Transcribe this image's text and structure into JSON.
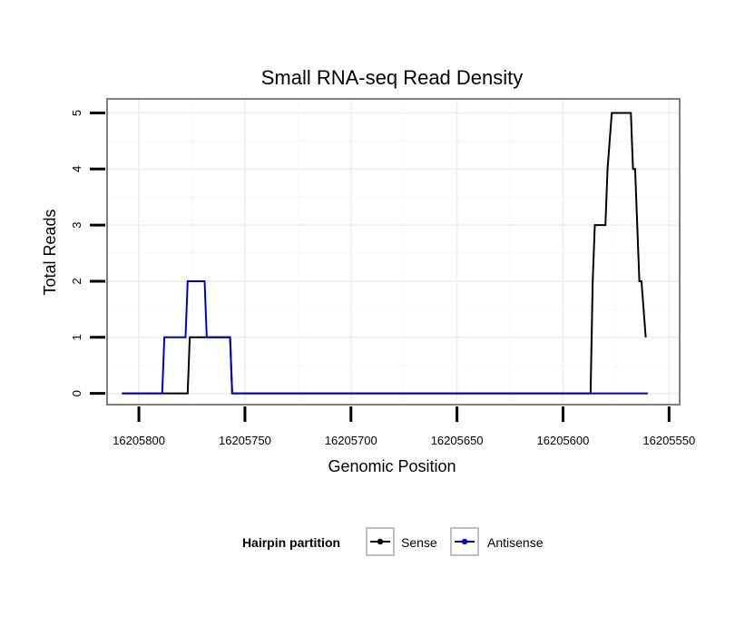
{
  "chart_data": {
    "type": "line",
    "title": "Small RNA-seq Read Density",
    "xlabel": "Genomic Position",
    "ylabel": "Total Reads",
    "xlim": [
      16205815,
      16205545
    ],
    "x_reversed": true,
    "ylim": [
      -0.2,
      5.25
    ],
    "x_ticks": [
      16205800,
      16205750,
      16205700,
      16205650,
      16205600,
      16205550
    ],
    "x_tick_labels": [
      "16205800",
      "16205750",
      "16205700",
      "16205650",
      "16205600",
      "16205550"
    ],
    "y_ticks": [
      0,
      1,
      2,
      3,
      4,
      5
    ],
    "y_tick_labels": [
      "0",
      "1",
      "2",
      "3",
      "4",
      "5"
    ],
    "grid": true,
    "legend": {
      "title": "Hairpin partition",
      "position": "bottom",
      "entries": [
        "Sense",
        "Antisense"
      ]
    },
    "series": [
      {
        "name": "Sense",
        "color": "#000000",
        "points": [
          [
            16205808,
            0
          ],
          [
            16205777,
            0
          ],
          [
            16205776,
            1
          ],
          [
            16205762,
            1
          ],
          [
            16205761,
            1
          ],
          [
            16205757,
            1
          ],
          [
            16205756,
            0
          ],
          [
            16205587,
            0
          ],
          [
            16205586,
            2
          ],
          [
            16205585,
            3
          ],
          [
            16205580,
            3
          ],
          [
            16205579,
            4
          ],
          [
            16205577,
            5
          ],
          [
            16205568,
            5
          ],
          [
            16205567,
            4
          ],
          [
            16205566,
            4
          ],
          [
            16205564,
            2
          ],
          [
            16205563,
            2
          ],
          [
            16205561,
            1
          ]
        ]
      },
      {
        "name": "Antisense",
        "color": "#0000cc",
        "points": [
          [
            16205808,
            0
          ],
          [
            16205789,
            0
          ],
          [
            16205788,
            1
          ],
          [
            16205778,
            1
          ],
          [
            16205777,
            2
          ],
          [
            16205769,
            2
          ],
          [
            16205768,
            1
          ],
          [
            16205757,
            1
          ],
          [
            16205756,
            0
          ],
          [
            16205560,
            0
          ]
        ]
      }
    ]
  }
}
